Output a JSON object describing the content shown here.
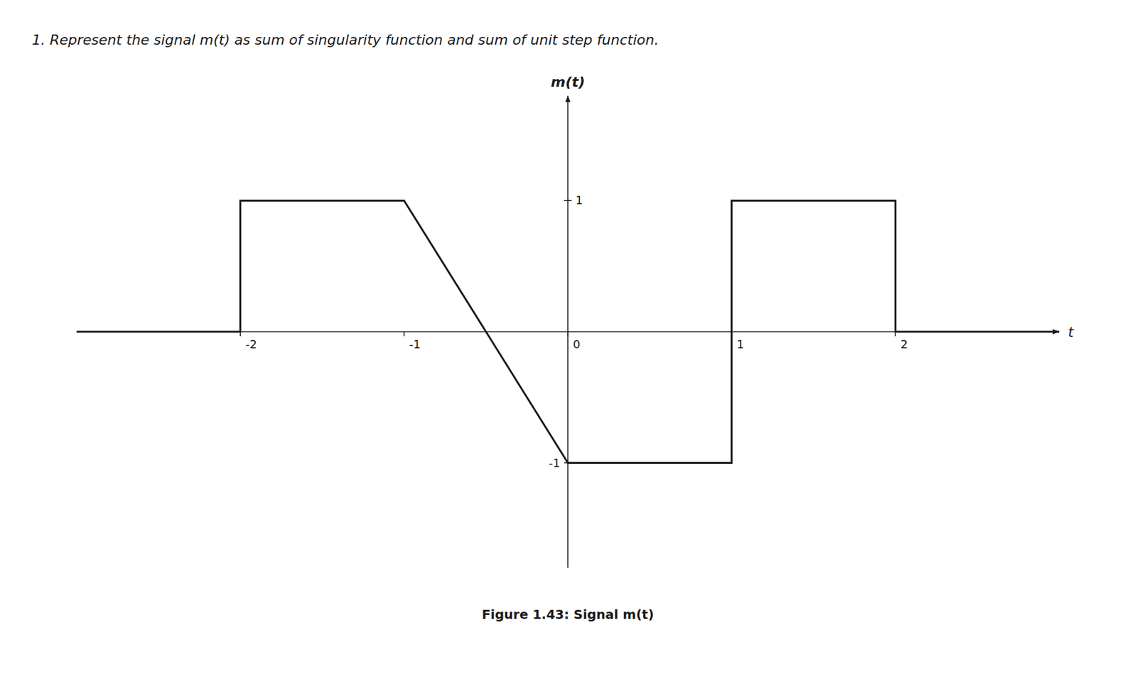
{
  "chart_data": {
    "type": "line",
    "title": "1.    Represent the signal m(t) as sum of singularity function and sum of unit step function.",
    "x_label": "t",
    "y_label": "m(t)",
    "annotations": [
      "Figure 1.43: Signal m(t)"
    ],
    "x": [
      -3.0,
      -2.0,
      -2.0,
      -1.0,
      -1.0,
      0.0,
      0.0,
      1.0,
      1.0,
      2.0,
      2.0,
      3.0
    ],
    "values": [
      0.0,
      0.0,
      1.0,
      1.0,
      1.0,
      -1.0,
      -1.0,
      -1.0,
      1.0,
      1.0,
      0.0,
      0.0
    ],
    "color": "#1a1a1a",
    "xlim": [
      -3.0,
      3.0
    ],
    "ylim": [
      -1.8,
      1.8
    ],
    "xticks": [
      -2,
      -1,
      0,
      1,
      2
    ],
    "yticks": [
      -1,
      1
    ],
    "grid": false
  }
}
